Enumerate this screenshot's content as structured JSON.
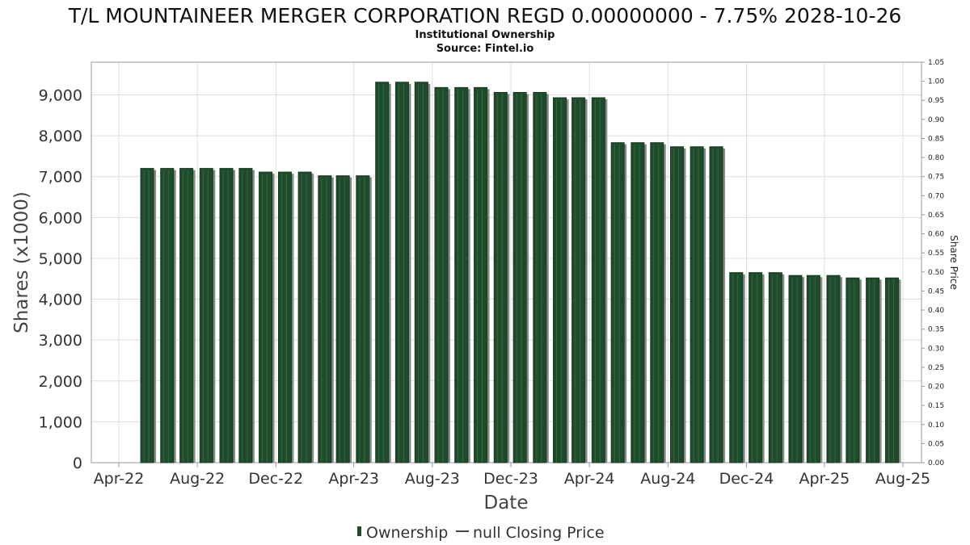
{
  "chart_data": {
    "type": "bar",
    "title": "T/L MOUNTAINEER MERGER CORPORATION REGD 0.00000000 - 7.75% 2028-10-26",
    "subtitle_lines": [
      "Institutional Ownership",
      "Source: Fintel.io"
    ],
    "xlabel": "Date",
    "ylabel": "Shares (x1000)",
    "ylabel_right": "Share Price",
    "x_ticks": [
      "Apr-22",
      "Aug-22",
      "Dec-22",
      "Apr-23",
      "Aug-23",
      "Dec-23",
      "Apr-24",
      "Aug-24",
      "Dec-24",
      "Apr-25",
      "Aug-25"
    ],
    "y_ticks": [
      "0",
      "1,000",
      "2,000",
      "3,000",
      "4,000",
      "5,000",
      "6,000",
      "7,000",
      "8,000",
      "9,000"
    ],
    "y_ticks_right": [
      "0.00",
      "0.05",
      "0.10",
      "0.15",
      "0.20",
      "0.25",
      "0.30",
      "0.35",
      "0.40",
      "0.45",
      "0.50",
      "0.55",
      "0.60",
      "0.65",
      "0.70",
      "0.75",
      "0.80",
      "0.85",
      "0.90",
      "0.95",
      "1.00",
      "1.05"
    ],
    "ylim": [
      0,
      9800
    ],
    "ylim_right": [
      0,
      1.05
    ],
    "grid": true,
    "legend_position": "bottom-center",
    "series": [
      {
        "name": "Ownership",
        "color": "#1f4a2b",
        "x": [
          "2022-05-15",
          "2022-06-15",
          "2022-07-15",
          "2022-08-15",
          "2022-09-15",
          "2022-10-15",
          "2022-11-15",
          "2022-12-15",
          "2023-01-15",
          "2023-02-15",
          "2023-03-15",
          "2023-04-15",
          "2023-05-15",
          "2023-06-15",
          "2023-07-15",
          "2023-08-15",
          "2023-09-15",
          "2023-10-15",
          "2023-11-15",
          "2023-12-15",
          "2024-01-15",
          "2024-02-15",
          "2024-03-15",
          "2024-04-15",
          "2024-05-15",
          "2024-06-15",
          "2024-07-15",
          "2024-08-15",
          "2024-09-15",
          "2024-10-15",
          "2024-11-15",
          "2024-12-15",
          "2025-01-15",
          "2025-02-15",
          "2025-03-15",
          "2025-04-15",
          "2025-05-15",
          "2025-06-15",
          "2025-07-15"
        ],
        "values": [
          7200,
          7200,
          7200,
          7200,
          7200,
          7200,
          7110,
          7110,
          7110,
          7020,
          7020,
          7020,
          9310,
          9310,
          9310,
          9180,
          9180,
          9180,
          9060,
          9060,
          9060,
          8930,
          8930,
          8930,
          7830,
          7830,
          7830,
          7730,
          7730,
          7730,
          4650,
          4650,
          4650,
          4580,
          4580,
          4580,
          4520,
          4520,
          4520
        ]
      },
      {
        "name": "null Closing Price",
        "color": "#444444",
        "values": []
      }
    ]
  }
}
